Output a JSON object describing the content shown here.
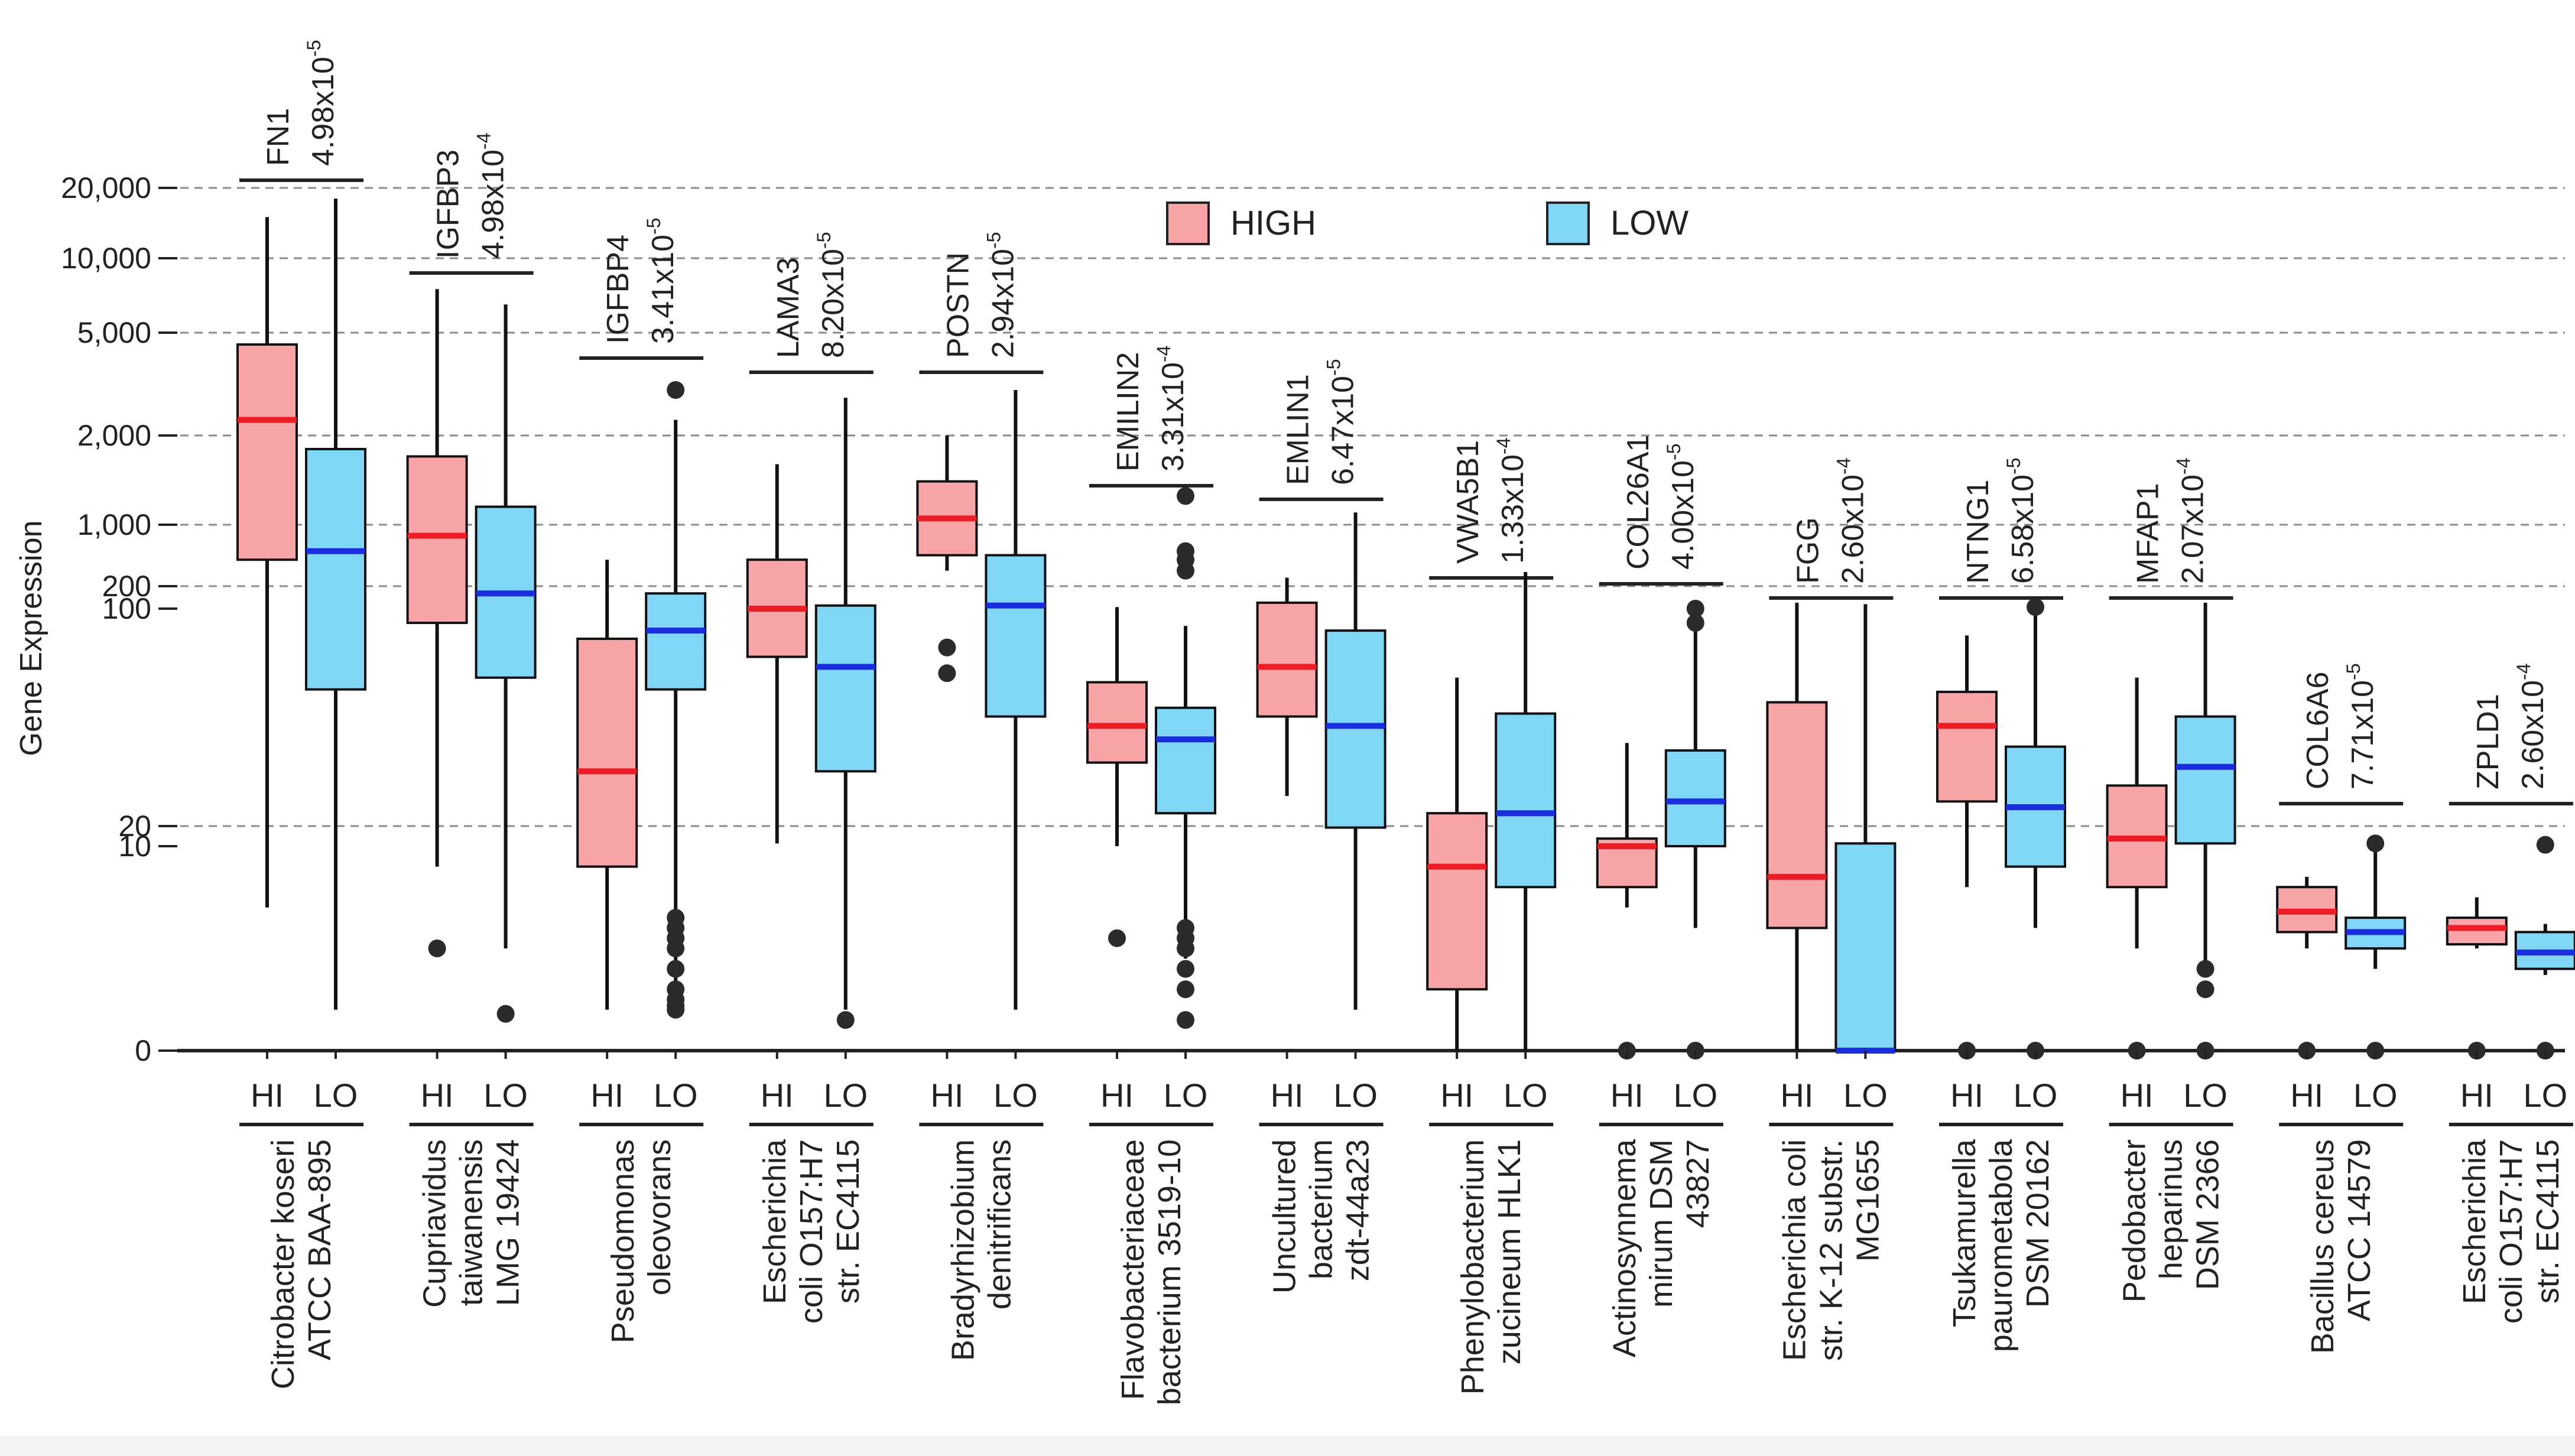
{
  "chart_data": {
    "type": "boxplot",
    "ylabel": "Gene Expression",
    "yaxis_ticks": [
      "20,000",
      "10,000",
      "5,000",
      "2,000",
      "1,000",
      "200",
      "100",
      "20",
      "10",
      "0"
    ],
    "ytick_values": [
      20000,
      10000,
      5000,
      2000,
      1000,
      200,
      100,
      20,
      10,
      0
    ],
    "gridlines": [
      "20,000",
      "10,000",
      "5,000",
      "2,000",
      "1,000",
      "200",
      "20"
    ],
    "legend": [
      {
        "label": "HIGH",
        "color": "#f9a5a8",
        "median_color": "#ee1c25"
      },
      {
        "label": "LOW",
        "color": "#7fd6f5",
        "median_color": "#1a2ce0"
      }
    ],
    "group_labels": [
      "HI",
      "LO"
    ],
    "p_prefix": "x10",
    "groups": [
      {
        "gene": "FN1",
        "p_mantissa": "4.98",
        "p_exp": "-5",
        "organism": [
          "Citrobacter koseri",
          "ATCC BAA-895"
        ],
        "HI": {
          "whisker_low": 7,
          "q1": 400,
          "median": 2300,
          "q3": 4500,
          "whisker_high": 15000,
          "outliers": []
        },
        "LO": {
          "whisker_low": 2,
          "q1": 55,
          "median": 500,
          "q3": 1800,
          "whisker_high": 18000,
          "outliers": []
        }
      },
      {
        "gene": "IGFBP3",
        "p_mantissa": "4.98",
        "p_exp": "-4",
        "organism": [
          "Cupriavidus",
          "taiwanensis",
          "LMG 19424"
        ],
        "HI": {
          "whisker_low": 9,
          "q1": 90,
          "median": 750,
          "q3": 1700,
          "whisker_high": 7500,
          "outliers": [
            5
          ]
        },
        "LO": {
          "whisker_low": 5,
          "q1": 60,
          "median": 160,
          "q3": 1150,
          "whisker_high": 6500,
          "outliers": [
            1.8
          ]
        }
      },
      {
        "gene": "IGFBP4",
        "p_mantissa": "3.41",
        "p_exp": "-5",
        "organism": [
          "Pseudomonas",
          "oleovorans"
        ],
        "HI": {
          "whisker_low": 2,
          "q1": 9,
          "median": 30,
          "q3": 80,
          "whisker_high": 400,
          "outliers": []
        },
        "LO": {
          "whisker_low": 2,
          "q1": 55,
          "median": 85,
          "q3": 160,
          "whisker_high": 2300,
          "outliers": [
            3000,
            6.5,
            6,
            5.5,
            5,
            4,
            3,
            2.5,
            2.2,
            2
          ]
        }
      },
      {
        "gene": "LAMA3",
        "p_mantissa": "8.20",
        "p_exp": "-5",
        "organism": [
          "Escherichia",
          "coli O157:H7",
          "str. EC4115"
        ],
        "HI": {
          "whisker_low": 11,
          "q1": 70,
          "median": 100,
          "q3": 400,
          "whisker_high": 1600,
          "outliers": []
        },
        "LO": {
          "whisker_low": 2,
          "q1": 30,
          "median": 65,
          "q3": 110,
          "whisker_high": 2800,
          "outliers": [
            1.5
          ]
        }
      },
      {
        "gene": "POSTN",
        "p_mantissa": "2.94",
        "p_exp": "-5",
        "organism": [
          "Bradyrhizobium",
          "denitrificans"
        ],
        "HI": {
          "whisker_low": 300,
          "q1": 450,
          "median": 1050,
          "q3": 1400,
          "whisker_high": 2000,
          "outliers": [
            75,
            62
          ]
        },
        "LO": {
          "whisker_low": 2,
          "q1": 45,
          "median": 110,
          "q3": 450,
          "whisker_high": 3000,
          "outliers": []
        }
      },
      {
        "gene": "EMILIN2",
        "p_mantissa": "3.31",
        "p_exp": "-4",
        "organism": [
          "Flavobacteriaceae",
          "bacterium 3519-10"
        ],
        "HI": {
          "whisker_low": 10,
          "q1": 32,
          "median": 42,
          "q3": 58,
          "whisker_high": 105,
          "outliers": [
            5.5
          ]
        },
        "LO": {
          "whisker_low": 4.5,
          "q1": 22,
          "median": 38,
          "q3": 48,
          "whisker_high": 88,
          "outliers": [
            1250,
            500,
            400,
            300,
            6,
            5.5,
            5,
            4,
            3,
            1.5
          ]
        }
      },
      {
        "gene": "EMLIN1",
        "p_mantissa": "6.47",
        "p_exp": "-5",
        "organism": [
          "Uncultured",
          "bacterium",
          "zdt-44a23"
        ],
        "HI": {
          "whisker_low": 25,
          "q1": 45,
          "median": 65,
          "q3": 120,
          "whisker_high": 250,
          "outliers": []
        },
        "LO": {
          "whisker_low": 2,
          "q1": 19,
          "median": 42,
          "q3": 85,
          "whisker_high": 1100,
          "outliers": []
        }
      },
      {
        "gene": "VWA5B1",
        "p_mantissa": "1.33",
        "p_exp": "-4",
        "organism": [
          "Phenylobacterium",
          "zucineum HLK1"
        ],
        "HI": {
          "whisker_low": 0,
          "q1": 3,
          "median": 9,
          "q3": 22,
          "whisker_high": 60,
          "outliers": []
        },
        "LO": {
          "whisker_low": 0,
          "q1": 8,
          "median": 22,
          "q3": 46,
          "whisker_high": 290,
          "outliers": []
        }
      },
      {
        "gene": "COL26A1",
        "p_mantissa": "4.00",
        "p_exp": "-5",
        "organism": [
          "Actinosynnema",
          "mirum DSM",
          "43827"
        ],
        "HI": {
          "whisker_low": 7,
          "q1": 8,
          "median": 10,
          "q3": 13,
          "whisker_high": 37,
          "outliers": [
            0
          ]
        },
        "LO": {
          "whisker_low": 6,
          "q1": 10,
          "median": 24,
          "q3": 35,
          "whisker_high": 85,
          "outliers": [
            0,
            100,
            90
          ]
        }
      },
      {
        "gene": "FGG",
        "p_mantissa": "2.60",
        "p_exp": "-4",
        "organism": [
          "Escherichia coli",
          "str. K-12 substr.",
          "MG1655"
        ],
        "HI": {
          "whisker_low": 0,
          "q1": 6,
          "median": 8.5,
          "q3": 50,
          "whisker_high": 120,
          "outliers": []
        },
        "LO": {
          "whisker_low": 0,
          "q1": 0,
          "median": 0,
          "q3": 11,
          "whisker_high": 115,
          "outliers": []
        }
      },
      {
        "gene": "NTNG1",
        "p_mantissa": "6.58",
        "p_exp": "-5",
        "organism": [
          "Tsukamurella",
          "paurometabola",
          "DSM 20162"
        ],
        "HI": {
          "whisker_low": 8,
          "q1": 24,
          "median": 42,
          "q3": 54,
          "whisker_high": 82,
          "outliers": [
            0
          ]
        },
        "LO": {
          "whisker_low": 6,
          "q1": 9,
          "median": 23,
          "q3": 36,
          "whisker_high": 115,
          "outliers": [
            0,
            105
          ]
        }
      },
      {
        "gene": "MFAP1",
        "p_mantissa": "2.07",
        "p_exp": "-4",
        "organism": [
          "Pedobacter",
          "heparinus",
          "DSM 2366"
        ],
        "HI": {
          "whisker_low": 5,
          "q1": 8,
          "median": 13,
          "q3": 27,
          "whisker_high": 60,
          "outliers": [
            0
          ]
        },
        "LO": {
          "whisker_low": 4,
          "q1": 11,
          "median": 31,
          "q3": 45,
          "whisker_high": 120,
          "outliers": [
            0,
            4,
            3
          ]
        }
      },
      {
        "gene": "COL6A6",
        "p_mantissa": "7.71",
        "p_exp": "-5",
        "organism": [
          "Bacillus cereus",
          "ATCC 14579"
        ],
        "HI": {
          "whisker_low": 5,
          "q1": 5.8,
          "median": 6.8,
          "q3": 8,
          "whisker_high": 8.5,
          "outliers": [
            0
          ]
        },
        "LO": {
          "whisker_low": 4,
          "q1": 5,
          "median": 5.8,
          "q3": 6.5,
          "whisker_high": 11,
          "outliers": [
            0,
            11
          ]
        }
      },
      {
        "gene": "ZPLD1",
        "p_mantissa": "2.60",
        "p_exp": "-4",
        "organism": [
          "Escherichia",
          "coli O157:H7",
          "str. EC4115"
        ],
        "HI": {
          "whisker_low": 5,
          "q1": 5.2,
          "median": 6,
          "q3": 6.5,
          "whisker_high": 7.5,
          "outliers": [
            0
          ]
        },
        "LO": {
          "whisker_low": 3.7,
          "q1": 4,
          "median": 4.8,
          "q3": 5.8,
          "whisker_high": 6.2,
          "outliers": [
            0,
            10.5
          ]
        }
      }
    ]
  }
}
